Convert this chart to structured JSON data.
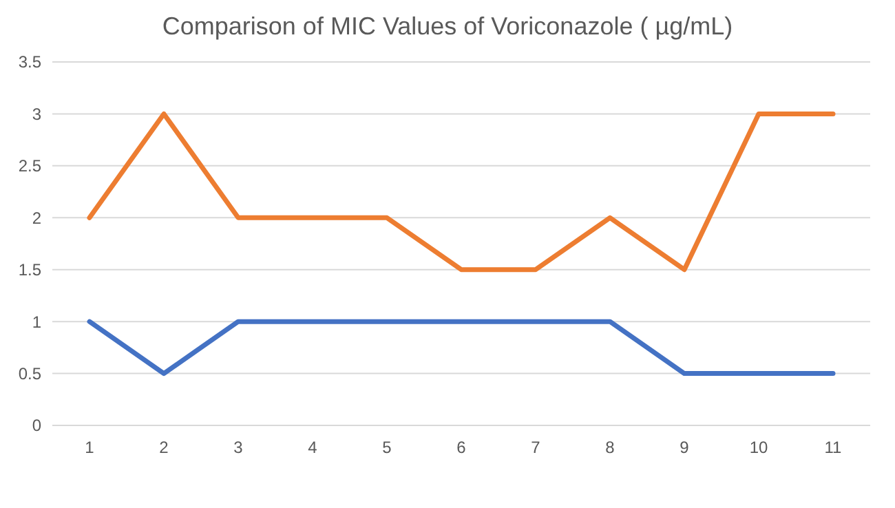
{
  "chart_data": {
    "type": "line",
    "title": "Comparison of MIC Values of Voriconazole ( µg/mL)",
    "categories": [
      "1",
      "2",
      "3",
      "4",
      "5",
      "6",
      "7",
      "8",
      "9",
      "10",
      "11"
    ],
    "series": [
      {
        "color": "#4472c4",
        "values": [
          1,
          0.5,
          1,
          1,
          1,
          1,
          1,
          1,
          0.5,
          0.5,
          0.5
        ]
      },
      {
        "color": "#ed7d31",
        "values": [
          2,
          3,
          2,
          2,
          2,
          1.5,
          1.5,
          2,
          1.5,
          3,
          3
        ]
      }
    ],
    "ylim": [
      0,
      3.5
    ],
    "yticks": [
      0,
      0.5,
      1,
      1.5,
      2,
      2.5,
      3,
      3.5
    ],
    "grid": "y",
    "marker": "none",
    "line_style": "solid"
  }
}
